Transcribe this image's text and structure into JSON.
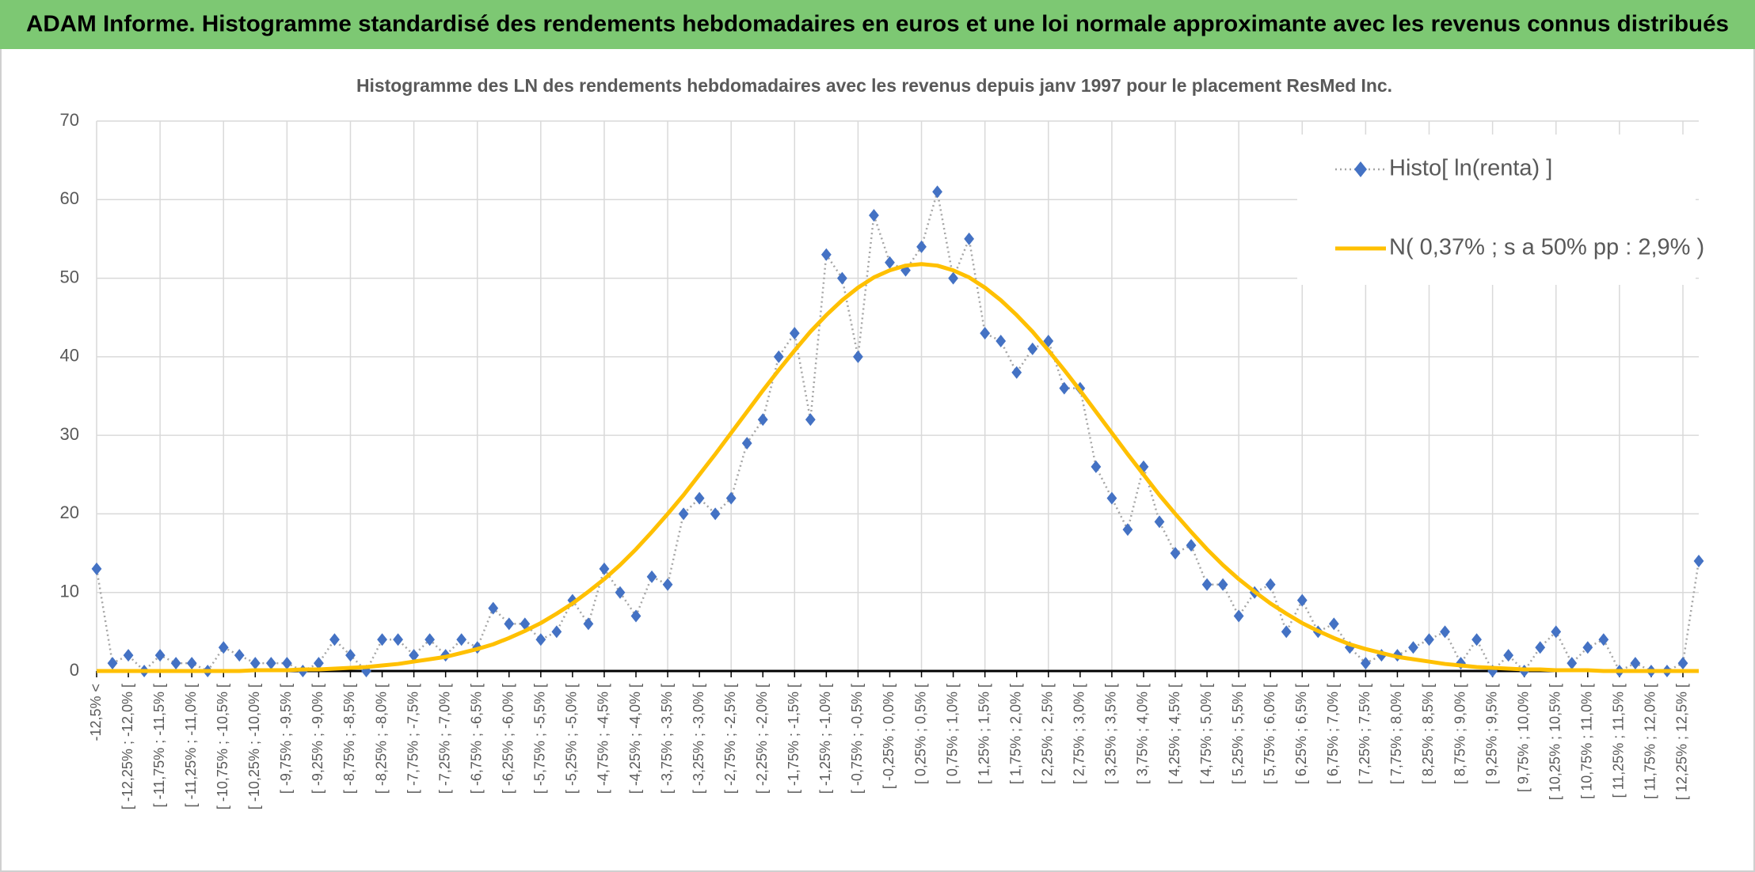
{
  "chart_data": {
    "type": "line",
    "title": "ADAM Informe. Histogramme standardisé des rendements hebdomadaires en euros et une loi normale approximante avec les revenus connus distribués",
    "subtitle": "Histogramme des LN des rendements hebdomadaires avec les revenus depuis janv 1997 pour le placement ResMed Inc.",
    "categories": [
      "-12,5% <",
      null,
      "[ -12,25% ; -12,0% [",
      null,
      "[ -11,75% ; -11,5% [",
      null,
      "[ -11,25% ; -11,0% [",
      null,
      "[ -10,75% ; -10,5% [",
      null,
      "[ -10,25% ; -10,0% [",
      null,
      "[ -9,75% ; -9,5% [",
      null,
      "[ -9,25% ; -9,0% [",
      null,
      "[ -8,75% ; -8,5% [",
      null,
      "[ -8,25% ; -8,0% [",
      null,
      "[ -7,75% ; -7,5% [",
      null,
      "[ -7,25% ; -7,0% [",
      null,
      "[ -6,75% ; -6,5% [",
      null,
      "[ -6,25% ; -6,0% [",
      null,
      "[ -5,75% ; -5,5% [",
      null,
      "[ -5,25% ; -5,0% [",
      null,
      "[ -4,75% ; -4,5% [",
      null,
      "[ -4,25% ; -4,0% [",
      null,
      "[ -3,75% ; -3,5% [",
      null,
      "[ -3,25% ; -3,0% [",
      null,
      "[ -2,75% ; -2,5% [",
      null,
      "[ -2,25% ; -2,0% [",
      null,
      "[ -1,75% ; -1,5% [",
      null,
      "[ -1,25% ; -1,0% [",
      null,
      "[ -0,75% ; -0,5% [",
      null,
      "[ -0,25% ; 0,0% [",
      null,
      "[ 0,25% ; 0,5% [",
      null,
      "[ 0,75% ; 1,0% [",
      null,
      "[ 1,25% ; 1,5% [",
      null,
      "[ 1,75% ; 2,0% [",
      null,
      "[ 2,25% ; 2,5% [",
      null,
      "[ 2,75% ; 3,0% [",
      null,
      "[ 3,25% ; 3,5% [",
      null,
      "[ 3,75% ; 4,0% [",
      null,
      "[ 4,25% ; 4,5% [",
      null,
      "[ 4,75% ; 5,0% [",
      null,
      "[ 5,25% ; 5,5% [",
      null,
      "[ 5,75% ; 6,0% [",
      null,
      "[ 6,25% ; 6,5% [",
      null,
      "[ 6,75% ; 7,0% [",
      null,
      "[ 7,25% ; 7,5% [",
      null,
      "[ 7,75% ; 8,0% [",
      null,
      "[ 8,25% ; 8,5% [",
      null,
      "[ 8,75% ; 9,0% [",
      null,
      "[ 9,25% ; 9,5% [",
      null,
      "[ 9,75% ; 10,0% [",
      null,
      "[ 10,25% ; 10,5% [",
      null,
      "[ 10,75% ; 11,0% [",
      null,
      "[ 11,25% ; 11,5% [",
      null,
      "[ 11,75% ; 12,0% [",
      null,
      "[ 12,25% ; 12,5% [",
      null
    ],
    "series": [
      {
        "name": "Histo[ ln(renta) ]",
        "color": "#4472c4",
        "values": [
          13,
          1,
          2,
          0,
          2,
          1,
          1,
          0,
          3,
          2,
          1,
          1,
          1,
          0,
          1,
          4,
          2,
          0,
          4,
          4,
          2,
          4,
          2,
          4,
          3,
          8,
          6,
          6,
          4,
          5,
          9,
          6,
          13,
          10,
          7,
          12,
          11,
          20,
          22,
          20,
          22,
          29,
          32,
          40,
          43,
          32,
          53,
          50,
          40,
          58,
          52,
          51,
          54,
          61,
          50,
          55,
          43,
          42,
          38,
          41,
          42,
          36,
          36,
          26,
          22,
          18,
          26,
          19,
          15,
          16,
          11,
          11,
          7,
          10,
          11,
          5,
          9,
          5,
          6,
          3,
          1,
          2,
          2,
          3,
          4,
          5,
          1,
          4,
          0,
          2,
          0,
          3,
          5,
          1,
          3,
          4,
          0,
          1,
          0,
          0,
          1,
          14
        ]
      },
      {
        "name": "N( 0,37% ; s a 50% pp : 2,9% )",
        "color": "#ffc000",
        "values": [
          0,
          0,
          0,
          0,
          0,
          0,
          0,
          0,
          0,
          0,
          0.1,
          0.1,
          0.1,
          0.2,
          0.2,
          0.3,
          0.4,
          0.5,
          0.7,
          0.9,
          1.2,
          1.5,
          1.8,
          2.3,
          2.8,
          3.4,
          4.2,
          5.1,
          6.1,
          7.3,
          8.6,
          10.1,
          11.7,
          13.5,
          15.5,
          17.7,
          20.0,
          22.4,
          25.0,
          27.6,
          30.3,
          33.0,
          35.7,
          38.3,
          40.8,
          43.2,
          45.3,
          47.2,
          48.8,
          50.1,
          51.0,
          51.6,
          51.8,
          51.6,
          51.0,
          50.1,
          48.8,
          47.2,
          45.3,
          43.2,
          40.8,
          38.3,
          35.7,
          33.0,
          30.3,
          27.6,
          25.0,
          22.4,
          20.0,
          17.7,
          15.5,
          13.5,
          11.7,
          10.1,
          8.6,
          7.3,
          6.1,
          5.1,
          4.2,
          3.4,
          2.8,
          2.3,
          1.8,
          1.5,
          1.2,
          0.9,
          0.7,
          0.5,
          0.4,
          0.3,
          0.2,
          0.2,
          0.1,
          0.1,
          0.1,
          0,
          0,
          0,
          0,
          0,
          0,
          0
        ]
      }
    ],
    "ylim": [
      0,
      70
    ],
    "yticks": [
      0,
      10,
      20,
      30,
      40,
      50,
      60,
      70
    ],
    "grid": true,
    "legend": "top-right"
  }
}
